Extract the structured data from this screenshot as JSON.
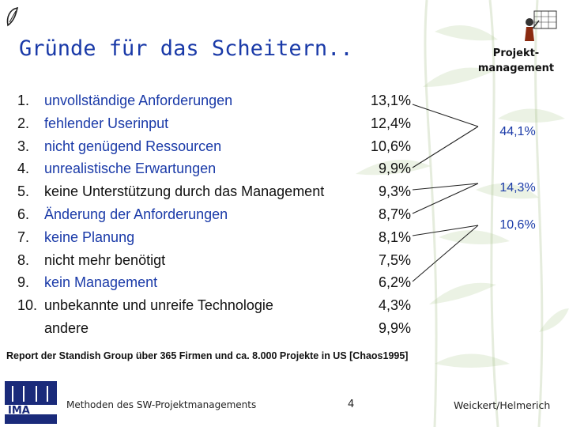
{
  "slide": {
    "title": "Gründe für das Scheitern..",
    "badge_line1": "Projekt-",
    "badge_line2": "management"
  },
  "items": [
    {
      "num": "1.",
      "label": "unvollständige Anforderungen",
      "pct": "13,1%",
      "color": "blue"
    },
    {
      "num": "2.",
      "label": "fehlender Userinput",
      "pct": "12,4%",
      "color": "blue"
    },
    {
      "num": "3.",
      "label": "nicht genügend Ressourcen",
      "pct": "10,6%",
      "color": "blue"
    },
    {
      "num": "4.",
      "label": "unrealistische Erwartungen",
      "pct": "9,9%",
      "color": "blue"
    },
    {
      "num": "5.",
      "label": "keine Unterstützung durch das Management",
      "pct": "9,3%",
      "color": "black"
    },
    {
      "num": "6.",
      "label": "Änderung der Anforderungen",
      "pct": "8,7%",
      "color": "blue"
    },
    {
      "num": "7.",
      "label": "keine Planung",
      "pct": "8,1%",
      "color": "blue"
    },
    {
      "num": "8.",
      "label": "nicht mehr benötigt",
      "pct": "7,5%",
      "color": "black"
    },
    {
      "num": "9.",
      "label": "kein Management",
      "pct": "6,2%",
      "color": "blue"
    },
    {
      "num": "10.",
      "label": "unbekannte und unreife Technologie",
      "pct": "4,3%",
      "color": "black"
    },
    {
      "num": "",
      "label": "andere",
      "pct": "9,9%",
      "color": "black"
    }
  ],
  "groups": [
    {
      "label": "44,1%"
    },
    {
      "label": "14,3%"
    },
    {
      "label": "10,6%"
    }
  ],
  "source": "Report der Standish Group über 365 Firmen und ca. 8.000 Projekte in US [Chaos1995]",
  "footer": {
    "course": "Methoden des SW-Projektmanagements",
    "page": "4",
    "authors": "Weickert/Helmerich"
  },
  "colors": {
    "blue": "#1a3aa8",
    "black": "#111111"
  }
}
